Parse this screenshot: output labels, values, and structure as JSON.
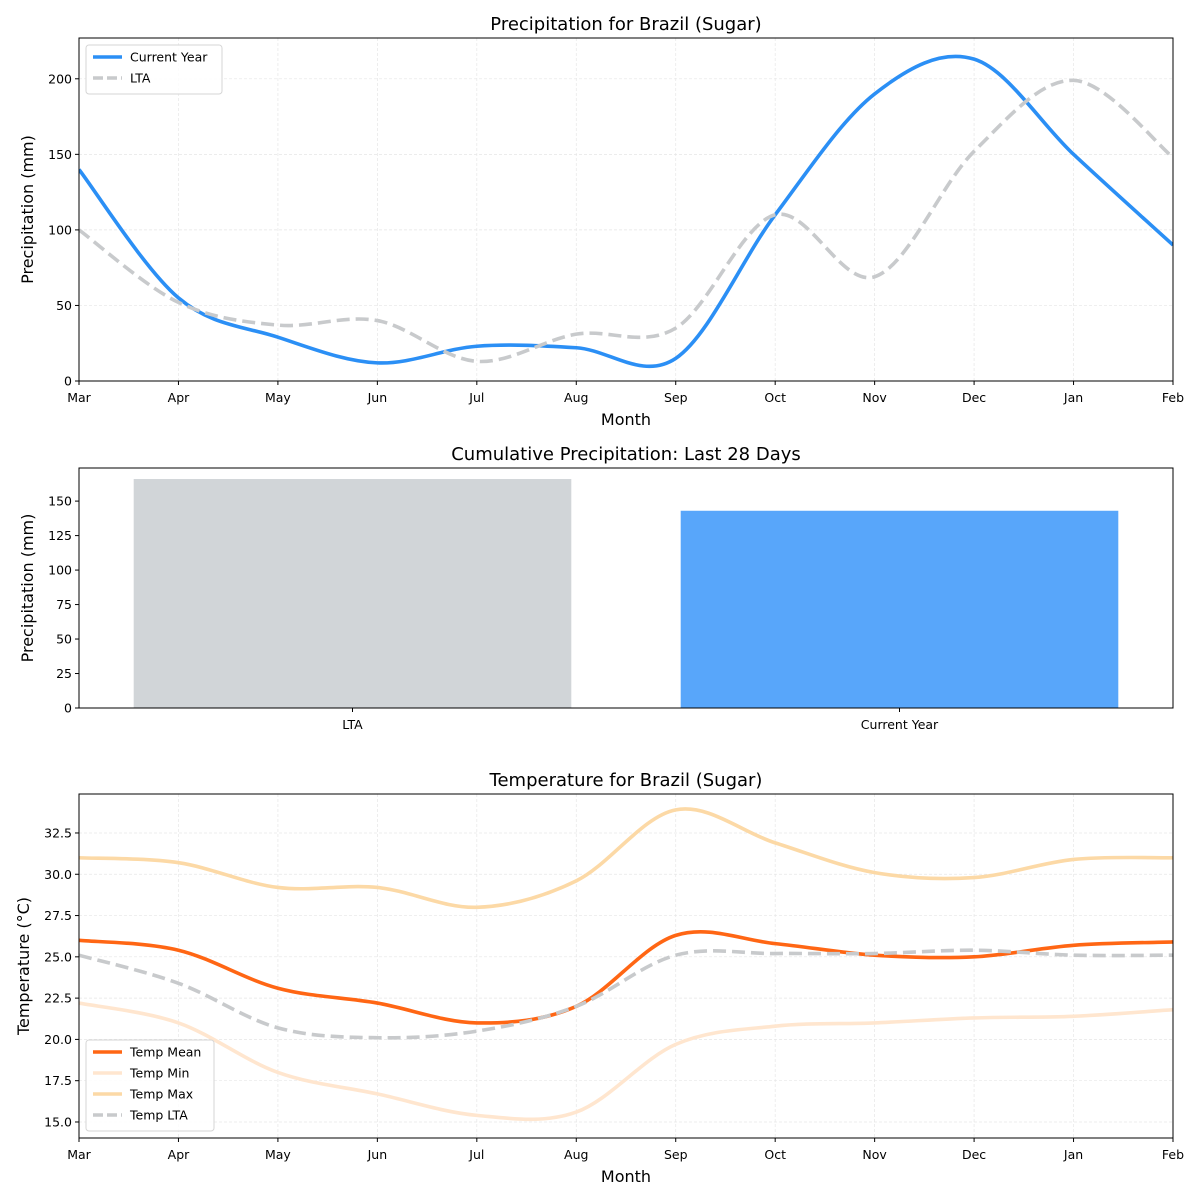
{
  "chart_data": [
    {
      "type": "line",
      "title": "Precipitation for Brazil (Sugar)",
      "xlabel": "Month",
      "ylabel": "Precipitation (mm)",
      "x": [
        "Mar",
        "Apr",
        "May",
        "Jun",
        "Jul",
        "Aug",
        "Sep",
        "Oct",
        "Nov",
        "Dec",
        "Jan",
        "Feb"
      ],
      "ylim": [
        0,
        227
      ],
      "yticks": [
        0,
        50,
        100,
        150,
        200
      ],
      "grid": true,
      "legend": "upper-left",
      "series": [
        {
          "name": "Current Year",
          "color": "#2b8ff5",
          "style": "solid",
          "values": [
            140,
            55,
            29,
            12,
            23,
            22,
            15,
            110,
            190,
            213,
            150,
            90
          ]
        },
        {
          "name": "LTA",
          "color": "#c8cacc",
          "style": "dashed",
          "values": [
            100,
            52,
            37,
            40,
            13,
            31,
            35,
            110,
            69,
            152,
            199,
            148
          ]
        }
      ]
    },
    {
      "type": "bar",
      "title": "Cumulative Precipitation: Last 28 Days",
      "xlabel": "",
      "ylabel": "Precipitation (mm)",
      "categories": [
        "LTA",
        "Current Year"
      ],
      "values": [
        166,
        143
      ],
      "colors": [
        "#d1d5d8",
        "#58a6fa"
      ],
      "ylim": [
        0,
        174
      ],
      "yticks": [
        0,
        25,
        50,
        75,
        100,
        125,
        150
      ]
    },
    {
      "type": "line",
      "title": "Temperature for Brazil (Sugar)",
      "xlabel": "Month",
      "ylabel": "Temperature (°C)",
      "x": [
        "Mar",
        "Apr",
        "May",
        "Jun",
        "Jul",
        "Aug",
        "Sep",
        "Oct",
        "Nov",
        "Dec",
        "Jan",
        "Feb"
      ],
      "ylim": [
        14.03,
        34.86
      ],
      "yticks": [
        "15.0",
        "17.5",
        "20.0",
        "22.5",
        "25.0",
        "27.5",
        "30.0",
        "32.5"
      ],
      "grid": true,
      "legend": "lower-left",
      "series": [
        {
          "name": "Temp Mean",
          "color": "#ff6614",
          "style": "solid",
          "values": [
            26.0,
            25.4,
            23.1,
            22.2,
            21.0,
            22.0,
            26.3,
            25.8,
            25.1,
            25.0,
            25.7,
            25.9
          ]
        },
        {
          "name": "Temp Min",
          "color": "#ffe6cf",
          "style": "solid",
          "values": [
            22.2,
            21.0,
            18.0,
            16.7,
            15.4,
            15.6,
            19.7,
            20.8,
            21.0,
            21.3,
            21.4,
            21.8
          ]
        },
        {
          "name": "Temp Max",
          "color": "#fcd9a6",
          "style": "solid",
          "values": [
            31.0,
            30.7,
            29.2,
            29.2,
            28.0,
            29.6,
            33.9,
            31.9,
            30.1,
            29.8,
            30.9,
            31.0
          ]
        },
        {
          "name": "Temp LTA",
          "color": "#c8cacc",
          "style": "dashed",
          "values": [
            25.1,
            23.4,
            20.7,
            20.1,
            20.5,
            22.0,
            25.1,
            25.2,
            25.2,
            25.4,
            25.1,
            25.1
          ]
        }
      ]
    }
  ]
}
